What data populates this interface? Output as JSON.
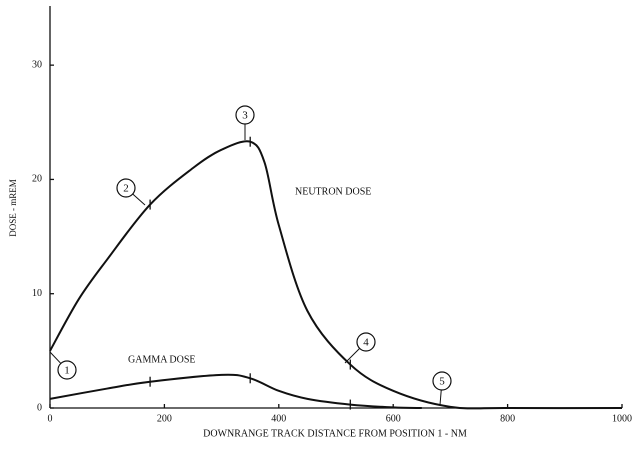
{
  "chart_data": {
    "type": "line",
    "xlabel": "DOWNRANGE TRACK DISTANCE FROM POSITION 1 - NM",
    "ylabel": "DOSE - mREM",
    "series": [
      {
        "name": "NEUTRON DOSE",
        "color": "#111111",
        "x": [
          0,
          50,
          100,
          175,
          250,
          300,
          350,
          375,
          400,
          450,
          525,
          600,
          700,
          800,
          1000
        ],
        "values": [
          5,
          9.5,
          13,
          17.8,
          21,
          22.6,
          23.3,
          21.5,
          16,
          8.5,
          3.8,
          1.5,
          0.1,
          0,
          0
        ]
      },
      {
        "name": "GAMMA DOSE",
        "color": "#111111",
        "x": [
          0,
          100,
          175,
          300,
          350,
          400,
          450,
          525,
          600,
          650
        ],
        "values": [
          0.8,
          1.7,
          2.3,
          2.9,
          2.6,
          1.5,
          0.8,
          0.3,
          0.05,
          0
        ]
      }
    ],
    "annotations": [
      "1",
      "2",
      "3",
      "4",
      "5"
    ],
    "xlim": [
      0,
      1000
    ],
    "xticks": [
      0,
      200,
      400,
      600,
      800,
      1000
    ],
    "ylim": [
      0,
      35
    ],
    "yticks": [
      0,
      10,
      20,
      30
    ]
  }
}
